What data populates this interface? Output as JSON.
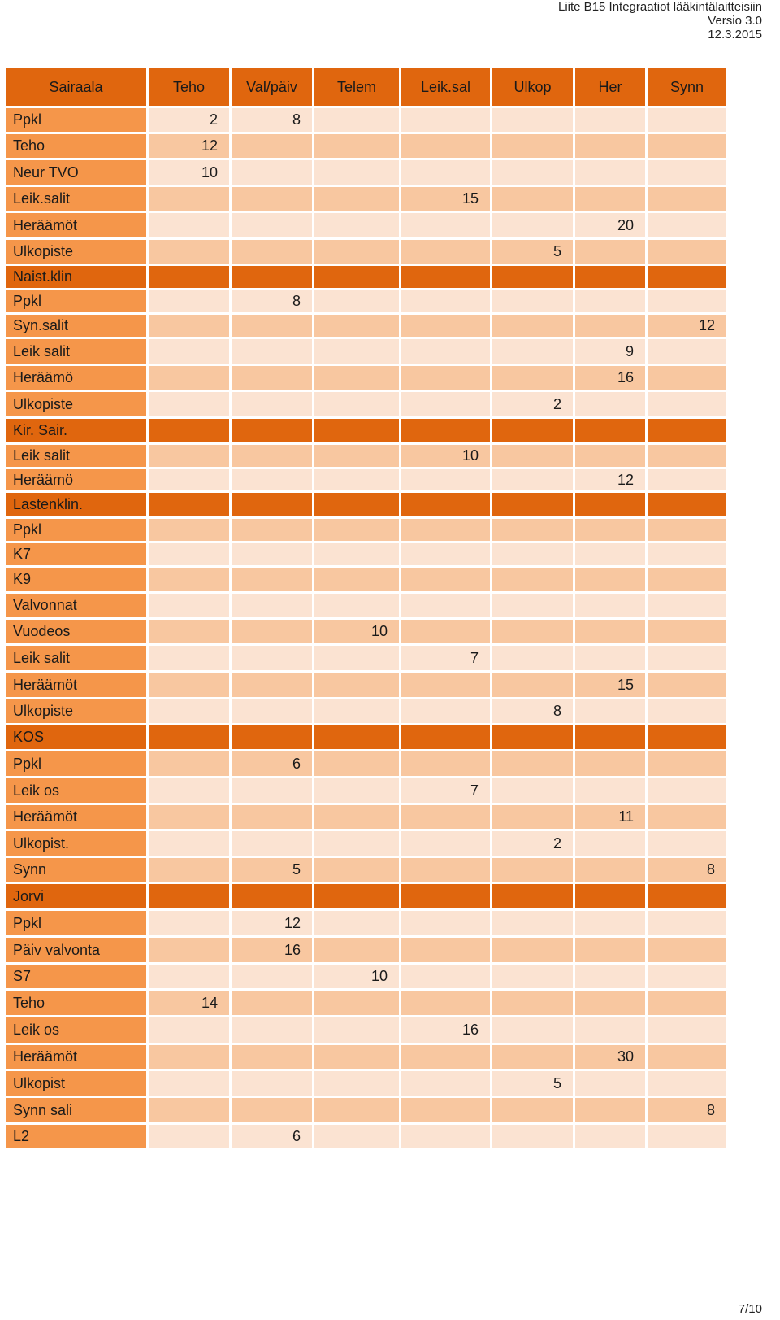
{
  "document_header": {
    "title": "Liite B15 Integraatiot lääkintälaitteisiin",
    "version": "Versio 3.0",
    "date": "12.3.2015"
  },
  "page_number": "7/10",
  "table": {
    "headers": [
      "Sairaala",
      "Teho",
      "Val/päiv",
      "Telem",
      "Leik.sal",
      "Ulkop",
      "Her",
      "Synn"
    ],
    "rows": [
      {
        "label": "Ppkl",
        "type": "row",
        "values": [
          "2",
          "8",
          "",
          "",
          "",
          "",
          ""
        ]
      },
      {
        "label": "Teho",
        "type": "row",
        "values": [
          "12",
          "",
          "",
          "",
          "",
          "",
          ""
        ]
      },
      {
        "label": "Neur TVO",
        "type": "row",
        "values": [
          "10",
          "",
          "",
          "",
          "",
          "",
          ""
        ]
      },
      {
        "label": "Leik.salit",
        "type": "row",
        "values": [
          "",
          "",
          "",
          "15",
          "",
          "",
          ""
        ]
      },
      {
        "label": "Heräämöt",
        "type": "row",
        "values": [
          "",
          "",
          "",
          "",
          "",
          "20",
          ""
        ]
      },
      {
        "label": "Ulkopiste",
        "type": "row",
        "values": [
          "",
          "",
          "",
          "",
          "5",
          "",
          ""
        ]
      },
      {
        "label": "Naist.klin",
        "type": "section",
        "values": [
          "",
          "",
          "",
          "",
          "",
          "",
          ""
        ]
      },
      {
        "label": "Ppkl",
        "type": "row",
        "values": [
          "",
          "8",
          "",
          "",
          "",
          "",
          ""
        ]
      },
      {
        "label": "Syn.salit",
        "type": "row",
        "values": [
          "",
          "",
          "",
          "",
          "",
          "",
          "12"
        ]
      },
      {
        "label": "Leik salit",
        "type": "row",
        "values": [
          "",
          "",
          "",
          "",
          "",
          "9",
          ""
        ]
      },
      {
        "label": "Heräämö",
        "type": "row",
        "values": [
          "",
          "",
          "",
          "",
          "",
          "16",
          ""
        ]
      },
      {
        "label": "Ulkopiste",
        "type": "row",
        "values": [
          "",
          "",
          "",
          "",
          "2",
          "",
          ""
        ]
      },
      {
        "label": "Kir. Sair.",
        "type": "section",
        "values": [
          "",
          "",
          "",
          "",
          "",
          "",
          ""
        ]
      },
      {
        "label": "Leik salit",
        "type": "row",
        "values": [
          "",
          "",
          "",
          "10",
          "",
          "",
          ""
        ]
      },
      {
        "label": "Heräämö",
        "type": "row",
        "values": [
          "",
          "",
          "",
          "",
          "",
          "12",
          ""
        ]
      },
      {
        "label": "Lastenklin.",
        "type": "section",
        "values": [
          "",
          "",
          "",
          "",
          "",
          "",
          ""
        ]
      },
      {
        "label": "Ppkl",
        "type": "row",
        "values": [
          "",
          "",
          "",
          "",
          "",
          "",
          ""
        ]
      },
      {
        "label": "K7",
        "type": "row",
        "values": [
          "",
          "",
          "",
          "",
          "",
          "",
          ""
        ]
      },
      {
        "label": "K9",
        "type": "row",
        "values": [
          "",
          "",
          "",
          "",
          "",
          "",
          ""
        ]
      },
      {
        "label": "Valvonnat",
        "type": "row",
        "values": [
          "",
          "",
          "",
          "",
          "",
          "",
          ""
        ]
      },
      {
        "label": "Vuodeos",
        "type": "row",
        "values": [
          "",
          "",
          "10",
          "",
          "",
          "",
          ""
        ]
      },
      {
        "label": "Leik salit",
        "type": "row",
        "values": [
          "",
          "",
          "",
          "7",
          "",
          "",
          ""
        ]
      },
      {
        "label": "Heräämöt",
        "type": "row",
        "values": [
          "",
          "",
          "",
          "",
          "",
          "15",
          ""
        ]
      },
      {
        "label": "Ulkopiste",
        "type": "row",
        "values": [
          "",
          "",
          "",
          "",
          "8",
          "",
          ""
        ]
      },
      {
        "label": "KOS",
        "type": "section",
        "values": [
          "",
          "",
          "",
          "",
          "",
          "",
          ""
        ]
      },
      {
        "label": "Ppkl",
        "type": "row",
        "values": [
          "",
          "6",
          "",
          "",
          "",
          "",
          ""
        ]
      },
      {
        "label": "Leik os",
        "type": "row",
        "values": [
          "",
          "",
          "",
          "7",
          "",
          "",
          ""
        ]
      },
      {
        "label": "Heräämöt",
        "type": "row",
        "values": [
          "",
          "",
          "",
          "",
          "",
          "11",
          ""
        ]
      },
      {
        "label": "Ulkopist.",
        "type": "row",
        "values": [
          "",
          "",
          "",
          "",
          "2",
          "",
          ""
        ]
      },
      {
        "label": "Synn",
        "type": "row",
        "values": [
          "",
          "5",
          "",
          "",
          "",
          "",
          "8"
        ]
      },
      {
        "label": "Jorvi",
        "type": "section",
        "values": [
          "",
          "",
          "",
          "",
          "",
          "",
          ""
        ]
      },
      {
        "label": "Ppkl",
        "type": "row",
        "values": [
          "",
          "12",
          "",
          "",
          "",
          "",
          ""
        ]
      },
      {
        "label": "Päiv valvonta",
        "type": "row",
        "values": [
          "",
          "16",
          "",
          "",
          "",
          "",
          ""
        ]
      },
      {
        "label": "S7",
        "type": "row",
        "values": [
          "",
          "",
          "10",
          "",
          "",
          "",
          ""
        ]
      },
      {
        "label": "Teho",
        "type": "row",
        "values": [
          "14",
          "",
          "",
          "",
          "",
          "",
          ""
        ]
      },
      {
        "label": "Leik os",
        "type": "row",
        "values": [
          "",
          "",
          "",
          "16",
          "",
          "",
          ""
        ]
      },
      {
        "label": "Heräämöt",
        "type": "row",
        "values": [
          "",
          "",
          "",
          "",
          "",
          "30",
          ""
        ]
      },
      {
        "label": "Ulkopist",
        "type": "row",
        "values": [
          "",
          "",
          "",
          "",
          "5",
          "",
          ""
        ]
      },
      {
        "label": "Synn sali",
        "type": "row",
        "values": [
          "",
          "",
          "",
          "",
          "",
          "",
          "8"
        ]
      },
      {
        "label": "L2",
        "type": "row",
        "values": [
          "",
          "6",
          "",
          "",
          "",
          "",
          ""
        ]
      }
    ]
  }
}
